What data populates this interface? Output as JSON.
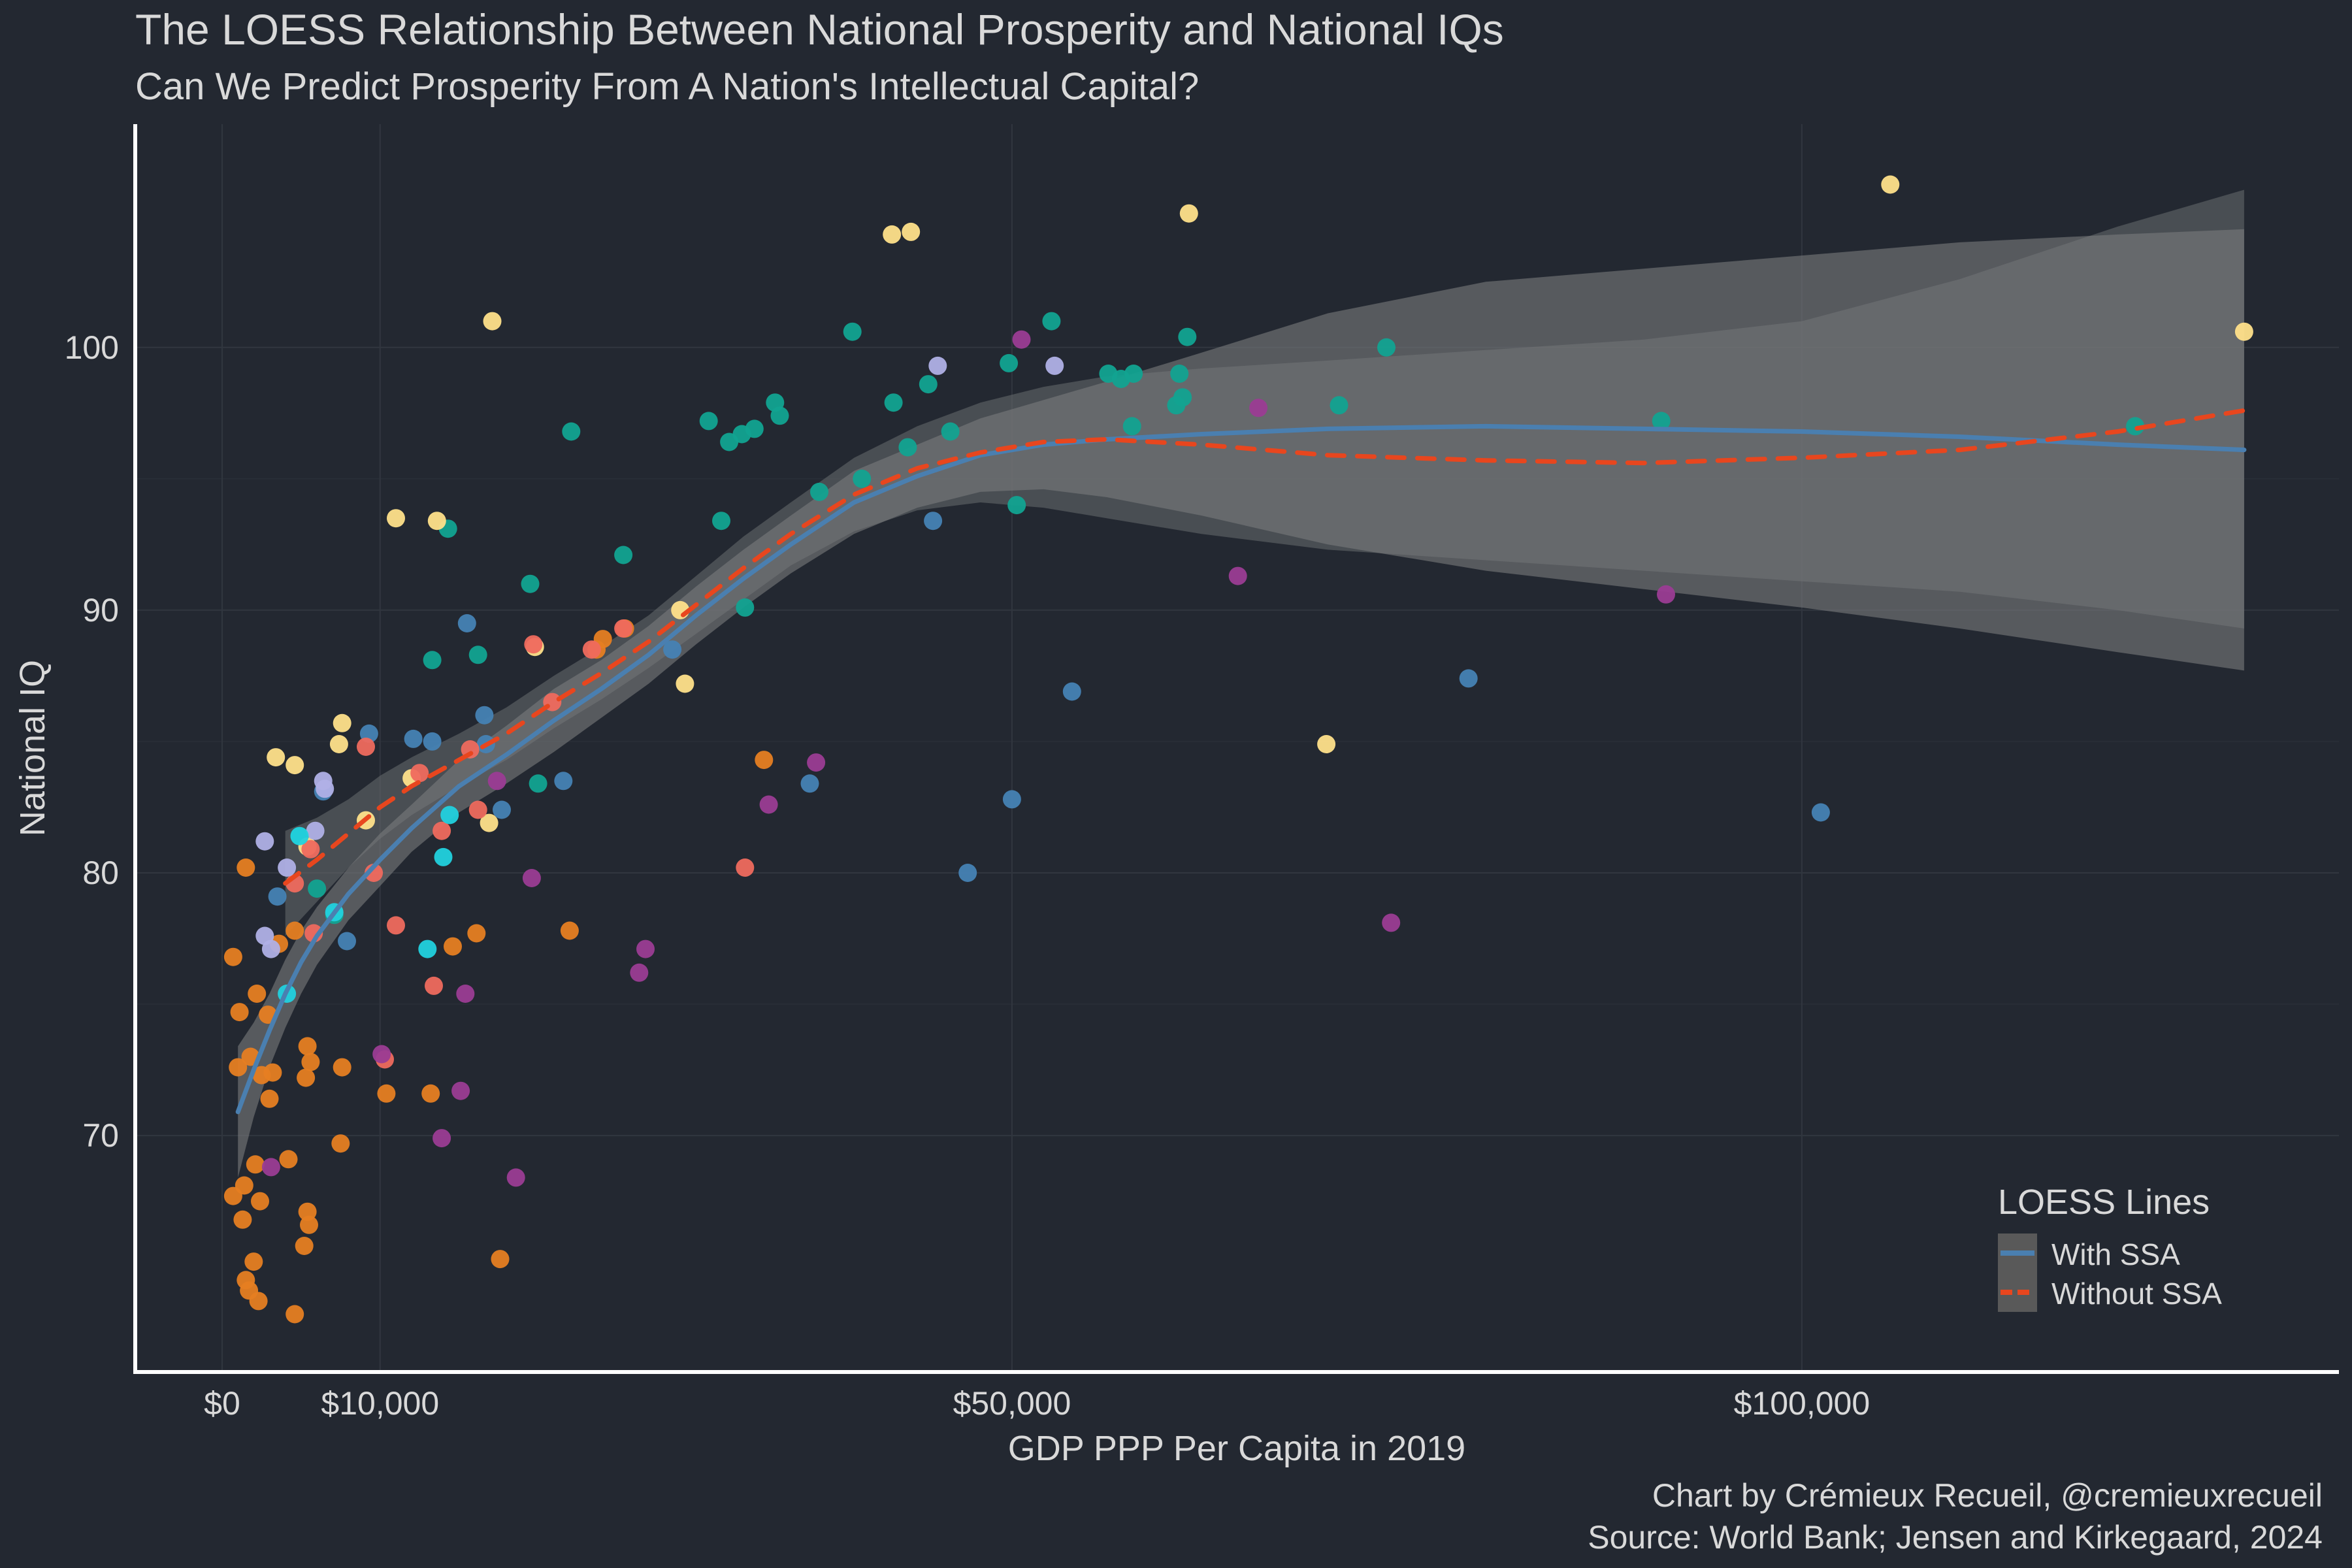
{
  "chart_data": {
    "type": "scatter",
    "title": "The LOESS Relationship Between National Prosperity and National IQs",
    "subtitle": "Can We Predict Prosperity From A Nation's Intellectual Capital?",
    "xlabel": "GDP PPP Per Capita in 2019",
    "ylabel": "National IQ",
    "xlim": [
      -5500,
      134000
    ],
    "ylim": [
      61,
      108.5
    ],
    "x_ticks": [
      {
        "value": 0,
        "label": "$0"
      },
      {
        "value": 10000,
        "label": "$10,000"
      },
      {
        "value": 50000,
        "label": "$50,000"
      },
      {
        "value": 100000,
        "label": "$100,000"
      }
    ],
    "y_ticks": [
      {
        "value": 70,
        "label": "70"
      },
      {
        "value": 80,
        "label": "80"
      },
      {
        "value": 90,
        "label": "90"
      },
      {
        "value": 100,
        "label": "100"
      }
    ],
    "grid": true,
    "legend": {
      "title": "LOESS Lines",
      "position": "bottom-right",
      "entries": [
        {
          "name": "With SSA",
          "color": "#4a7fb0",
          "style": "solid"
        },
        {
          "name": "Without SSA",
          "color": "#e8461e",
          "style": "dashed"
        }
      ]
    },
    "caption_lines": [
      "Chart by Crémieux Recueil, @cremieuxrecueil",
      "Source: World Bank; Jensen and Kirkegaard, 2024"
    ],
    "colors": {
      "orange": "#e67e22",
      "teal": "#12a391",
      "yellow": "#ffe08a",
      "blue": "#4682b4",
      "red": "#ef6a5e",
      "purple": "#9b3c93",
      "lavender": "#b0b0e6",
      "cyan": "#22d1de"
    },
    "points": [
      {
        "x": 700,
        "y": 76.8,
        "c": "orange"
      },
      {
        "x": 1100,
        "y": 74.7,
        "c": "orange"
      },
      {
        "x": 1500,
        "y": 80.2,
        "c": "orange"
      },
      {
        "x": 2200,
        "y": 75.4,
        "c": "orange"
      },
      {
        "x": 2900,
        "y": 74.6,
        "c": "orange"
      },
      {
        "x": 3200,
        "y": 72.4,
        "c": "orange"
      },
      {
        "x": 1000,
        "y": 72.6,
        "c": "orange"
      },
      {
        "x": 1800,
        "y": 73.0,
        "c": "orange"
      },
      {
        "x": 2500,
        "y": 72.3,
        "c": "orange"
      },
      {
        "x": 3000,
        "y": 71.4,
        "c": "orange"
      },
      {
        "x": 700,
        "y": 67.7,
        "c": "orange"
      },
      {
        "x": 1400,
        "y": 68.1,
        "c": "orange"
      },
      {
        "x": 2100,
        "y": 68.9,
        "c": "orange"
      },
      {
        "x": 2400,
        "y": 67.5,
        "c": "orange"
      },
      {
        "x": 1300,
        "y": 66.8,
        "c": "orange"
      },
      {
        "x": 1500,
        "y": 64.5,
        "c": "orange"
      },
      {
        "x": 1700,
        "y": 64.1,
        "c": "orange"
      },
      {
        "x": 2000,
        "y": 65.2,
        "c": "orange"
      },
      {
        "x": 2300,
        "y": 63.7,
        "c": "orange"
      },
      {
        "x": 4600,
        "y": 63.2,
        "c": "orange"
      },
      {
        "x": 4200,
        "y": 69.1,
        "c": "orange"
      },
      {
        "x": 5400,
        "y": 67.1,
        "c": "orange"
      },
      {
        "x": 5200,
        "y": 65.8,
        "c": "orange"
      },
      {
        "x": 5500,
        "y": 66.6,
        "c": "orange"
      },
      {
        "x": 5400,
        "y": 73.4,
        "c": "orange"
      },
      {
        "x": 5300,
        "y": 72.2,
        "c": "orange"
      },
      {
        "x": 5600,
        "y": 72.8,
        "c": "orange"
      },
      {
        "x": 7600,
        "y": 72.6,
        "c": "orange"
      },
      {
        "x": 7500,
        "y": 69.7,
        "c": "orange"
      },
      {
        "x": 10400,
        "y": 71.6,
        "c": "orange"
      },
      {
        "x": 13200,
        "y": 71.6,
        "c": "orange"
      },
      {
        "x": 14600,
        "y": 77.2,
        "c": "orange"
      },
      {
        "x": 16100,
        "y": 77.7,
        "c": "orange"
      },
      {
        "x": 17600,
        "y": 65.3,
        "c": "orange"
      },
      {
        "x": 3600,
        "y": 77.3,
        "c": "orange"
      },
      {
        "x": 4600,
        "y": 77.8,
        "c": "orange"
      },
      {
        "x": 22000,
        "y": 77.8,
        "c": "orange"
      },
      {
        "x": 23700,
        "y": 88.5,
        "c": "orange"
      },
      {
        "x": 24100,
        "y": 88.9,
        "c": "orange"
      },
      {
        "x": 25500,
        "y": 89.3,
        "c": "orange"
      },
      {
        "x": 34300,
        "y": 84.3,
        "c": "orange"
      },
      {
        "x": 4900,
        "y": 81.4,
        "c": "teal"
      },
      {
        "x": 6000,
        "y": 79.4,
        "c": "teal"
      },
      {
        "x": 7100,
        "y": 78.4,
        "c": "teal"
      },
      {
        "x": 13300,
        "y": 88.1,
        "c": "teal"
      },
      {
        "x": 14300,
        "y": 93.1,
        "c": "teal"
      },
      {
        "x": 16200,
        "y": 88.3,
        "c": "teal"
      },
      {
        "x": 19500,
        "y": 91.0,
        "c": "teal"
      },
      {
        "x": 20000,
        "y": 83.4,
        "c": "teal"
      },
      {
        "x": 22100,
        "y": 96.8,
        "c": "teal"
      },
      {
        "x": 25400,
        "y": 92.1,
        "c": "teal"
      },
      {
        "x": 30800,
        "y": 97.2,
        "c": "teal"
      },
      {
        "x": 31600,
        "y": 93.4,
        "c": "teal"
      },
      {
        "x": 32100,
        "y": 96.4,
        "c": "teal"
      },
      {
        "x": 32900,
        "y": 96.7,
        "c": "teal"
      },
      {
        "x": 33100,
        "y": 90.1,
        "c": "teal"
      },
      {
        "x": 33700,
        "y": 96.9,
        "c": "teal"
      },
      {
        "x": 35000,
        "y": 97.9,
        "c": "teal"
      },
      {
        "x": 35300,
        "y": 97.4,
        "c": "teal"
      },
      {
        "x": 37800,
        "y": 94.5,
        "c": "teal"
      },
      {
        "x": 39900,
        "y": 100.6,
        "c": "teal"
      },
      {
        "x": 40500,
        "y": 95.0,
        "c": "teal"
      },
      {
        "x": 42500,
        "y": 97.9,
        "c": "teal"
      },
      {
        "x": 43400,
        "y": 96.2,
        "c": "teal"
      },
      {
        "x": 44700,
        "y": 98.6,
        "c": "teal"
      },
      {
        "x": 46100,
        "y": 96.8,
        "c": "teal"
      },
      {
        "x": 49800,
        "y": 99.4,
        "c": "teal"
      },
      {
        "x": 50300,
        "y": 94.0,
        "c": "teal"
      },
      {
        "x": 52500,
        "y": 101.0,
        "c": "teal"
      },
      {
        "x": 56100,
        "y": 99.0,
        "c": "teal"
      },
      {
        "x": 56900,
        "y": 98.8,
        "c": "teal"
      },
      {
        "x": 57700,
        "y": 99.0,
        "c": "teal"
      },
      {
        "x": 57600,
        "y": 97.0,
        "c": "teal"
      },
      {
        "x": 60600,
        "y": 99.0,
        "c": "teal"
      },
      {
        "x": 60400,
        "y": 97.8,
        "c": "teal"
      },
      {
        "x": 60800,
        "y": 98.1,
        "c": "teal"
      },
      {
        "x": 61100,
        "y": 100.4,
        "c": "teal"
      },
      {
        "x": 70700,
        "y": 97.8,
        "c": "teal"
      },
      {
        "x": 73700,
        "y": 100.0,
        "c": "teal"
      },
      {
        "x": 91100,
        "y": 97.2,
        "c": "teal"
      },
      {
        "x": 121100,
        "y": 97.0,
        "c": "teal"
      },
      {
        "x": 3400,
        "y": 84.4,
        "c": "yellow"
      },
      {
        "x": 4600,
        "y": 84.1,
        "c": "yellow"
      },
      {
        "x": 7600,
        "y": 85.7,
        "c": "yellow"
      },
      {
        "x": 7400,
        "y": 84.9,
        "c": "yellow"
      },
      {
        "x": 11000,
        "y": 93.5,
        "c": "yellow"
      },
      {
        "x": 13600,
        "y": 93.4,
        "c": "yellow"
      },
      {
        "x": 17100,
        "y": 101.0,
        "c": "yellow"
      },
      {
        "x": 19800,
        "y": 88.6,
        "c": "yellow"
      },
      {
        "x": 29300,
        "y": 87.2,
        "c": "yellow"
      },
      {
        "x": 42400,
        "y": 104.3,
        "c": "yellow"
      },
      {
        "x": 43600,
        "y": 104.4,
        "c": "yellow"
      },
      {
        "x": 61200,
        "y": 105.1,
        "c": "yellow"
      },
      {
        "x": 69900,
        "y": 84.9,
        "c": "yellow"
      },
      {
        "x": 105600,
        "y": 106.2,
        "c": "yellow"
      },
      {
        "x": 128000,
        "y": 100.6,
        "c": "yellow"
      },
      {
        "x": 16900,
        "y": 81.9,
        "c": "yellow"
      },
      {
        "x": 9100,
        "y": 82.0,
        "c": "yellow"
      },
      {
        "x": 5400,
        "y": 81.0,
        "c": "yellow"
      },
      {
        "x": 12000,
        "y": 83.6,
        "c": "yellow"
      },
      {
        "x": 29000,
        "y": 90.0,
        "c": "yellow"
      },
      {
        "x": 3500,
        "y": 79.1,
        "c": "blue"
      },
      {
        "x": 6400,
        "y": 83.1,
        "c": "blue"
      },
      {
        "x": 9300,
        "y": 85.3,
        "c": "blue"
      },
      {
        "x": 12100,
        "y": 85.1,
        "c": "blue"
      },
      {
        "x": 13300,
        "y": 85.0,
        "c": "blue"
      },
      {
        "x": 15500,
        "y": 89.5,
        "c": "blue"
      },
      {
        "x": 16600,
        "y": 86.0,
        "c": "blue"
      },
      {
        "x": 17700,
        "y": 82.4,
        "c": "blue"
      },
      {
        "x": 21600,
        "y": 83.5,
        "c": "blue"
      },
      {
        "x": 37200,
        "y": 83.4,
        "c": "blue"
      },
      {
        "x": 47200,
        "y": 80.0,
        "c": "blue"
      },
      {
        "x": 50000,
        "y": 82.8,
        "c": "blue"
      },
      {
        "x": 53800,
        "y": 86.9,
        "c": "blue"
      },
      {
        "x": 78900,
        "y": 87.4,
        "c": "blue"
      },
      {
        "x": 101200,
        "y": 82.3,
        "c": "blue"
      },
      {
        "x": 45000,
        "y": 93.4,
        "c": "blue"
      },
      {
        "x": 28500,
        "y": 88.5,
        "c": "blue"
      },
      {
        "x": 16700,
        "y": 84.9,
        "c": "blue"
      },
      {
        "x": 7900,
        "y": 77.4,
        "c": "blue"
      },
      {
        "x": 4600,
        "y": 79.6,
        "c": "red"
      },
      {
        "x": 5800,
        "y": 77.7,
        "c": "red"
      },
      {
        "x": 5600,
        "y": 80.9,
        "c": "red"
      },
      {
        "x": 9100,
        "y": 84.8,
        "c": "red"
      },
      {
        "x": 10300,
        "y": 72.9,
        "c": "red"
      },
      {
        "x": 11000,
        "y": 78.0,
        "c": "red"
      },
      {
        "x": 13400,
        "y": 75.7,
        "c": "red"
      },
      {
        "x": 13900,
        "y": 81.6,
        "c": "red"
      },
      {
        "x": 15700,
        "y": 84.7,
        "c": "red"
      },
      {
        "x": 16200,
        "y": 82.4,
        "c": "red"
      },
      {
        "x": 19700,
        "y": 88.7,
        "c": "red"
      },
      {
        "x": 20900,
        "y": 86.5,
        "c": "red"
      },
      {
        "x": 23400,
        "y": 88.5,
        "c": "red"
      },
      {
        "x": 25400,
        "y": 89.3,
        "c": "red"
      },
      {
        "x": 33100,
        "y": 80.2,
        "c": "red"
      },
      {
        "x": 9600,
        "y": 80.0,
        "c": "red"
      },
      {
        "x": 12500,
        "y": 83.8,
        "c": "red"
      },
      {
        "x": 3100,
        "y": 68.8,
        "c": "purple"
      },
      {
        "x": 10100,
        "y": 73.1,
        "c": "purple"
      },
      {
        "x": 13900,
        "y": 69.9,
        "c": "purple"
      },
      {
        "x": 15100,
        "y": 71.7,
        "c": "purple"
      },
      {
        "x": 15400,
        "y": 75.4,
        "c": "purple"
      },
      {
        "x": 18600,
        "y": 68.4,
        "c": "purple"
      },
      {
        "x": 19600,
        "y": 79.8,
        "c": "purple"
      },
      {
        "x": 26400,
        "y": 76.2,
        "c": "purple"
      },
      {
        "x": 26800,
        "y": 77.1,
        "c": "purple"
      },
      {
        "x": 34600,
        "y": 82.6,
        "c": "purple"
      },
      {
        "x": 37600,
        "y": 84.2,
        "c": "purple"
      },
      {
        "x": 50600,
        "y": 100.3,
        "c": "purple"
      },
      {
        "x": 64300,
        "y": 91.3,
        "c": "purple"
      },
      {
        "x": 65600,
        "y": 97.7,
        "c": "purple"
      },
      {
        "x": 74000,
        "y": 78.1,
        "c": "purple"
      },
      {
        "x": 91400,
        "y": 90.6,
        "c": "purple"
      },
      {
        "x": 17400,
        "y": 83.5,
        "c": "purple"
      },
      {
        "x": 2700,
        "y": 81.2,
        "c": "lavender"
      },
      {
        "x": 2700,
        "y": 77.6,
        "c": "lavender"
      },
      {
        "x": 3100,
        "y": 77.1,
        "c": "lavender"
      },
      {
        "x": 4100,
        "y": 80.2,
        "c": "lavender"
      },
      {
        "x": 5900,
        "y": 81.6,
        "c": "lavender"
      },
      {
        "x": 6400,
        "y": 83.5,
        "c": "lavender"
      },
      {
        "x": 6500,
        "y": 83.2,
        "c": "lavender"
      },
      {
        "x": 45300,
        "y": 99.3,
        "c": "lavender"
      },
      {
        "x": 52700,
        "y": 99.3,
        "c": "lavender"
      },
      {
        "x": 4100,
        "y": 75.4,
        "c": "cyan"
      },
      {
        "x": 13000,
        "y": 77.1,
        "c": "cyan"
      },
      {
        "x": 14000,
        "y": 80.6,
        "c": "cyan"
      },
      {
        "x": 14400,
        "y": 82.2,
        "c": "cyan"
      },
      {
        "x": 7100,
        "y": 78.5,
        "c": "cyan"
      },
      {
        "x": 4900,
        "y": 81.4,
        "c": "cyan"
      }
    ],
    "series": [
      {
        "name": "With SSA",
        "color": "#4a7fb0",
        "x": [
          1000,
          2000,
          3000,
          4000,
          5000,
          6000,
          8000,
          10000,
          12000,
          15000,
          18000,
          21000,
          24000,
          27000,
          30000,
          33000,
          36000,
          40000,
          44000,
          48000,
          52000,
          56000,
          62000,
          70000,
          80000,
          90000,
          100000,
          110000,
          120000,
          128000
        ],
        "y": [
          70.9,
          72.5,
          74.0,
          75.4,
          76.6,
          77.6,
          79.2,
          80.5,
          81.7,
          83.3,
          84.5,
          85.8,
          87.0,
          88.3,
          89.8,
          91.2,
          92.5,
          94.1,
          95.1,
          95.9,
          96.3,
          96.5,
          96.7,
          96.9,
          97.0,
          96.9,
          96.8,
          96.6,
          96.3,
          96.1
        ],
        "lower": [
          68.4,
          70.7,
          72.6,
          74.1,
          75.4,
          76.5,
          78.2,
          79.5,
          80.8,
          82.3,
          83.4,
          84.6,
          85.9,
          87.2,
          88.7,
          90.1,
          91.4,
          92.9,
          93.9,
          94.5,
          94.6,
          94.3,
          93.6,
          92.5,
          91.5,
          90.8,
          90.1,
          89.3,
          88.4,
          87.7
        ],
        "upper": [
          73.4,
          74.3,
          75.4,
          76.7,
          77.8,
          78.7,
          80.2,
          81.5,
          82.6,
          84.3,
          85.6,
          87.0,
          88.1,
          89.4,
          90.9,
          92.3,
          93.6,
          95.3,
          96.3,
          97.3,
          98.0,
          98.7,
          99.8,
          101.3,
          102.5,
          103.0,
          103.5,
          104.0,
          104.3,
          104.5
        ]
      },
      {
        "name": "Without SSA",
        "color": "#e8461e",
        "x": [
          4000,
          6000,
          8000,
          10000,
          12000,
          15000,
          18000,
          21000,
          24000,
          27000,
          30000,
          33000,
          36000,
          40000,
          44000,
          48000,
          52000,
          56000,
          62000,
          70000,
          80000,
          90000,
          100000,
          110000,
          120000,
          128000
        ],
        "y": [
          79.6,
          80.5,
          81.5,
          82.5,
          83.3,
          84.3,
          85.3,
          86.5,
          87.6,
          88.8,
          90.2,
          91.6,
          92.9,
          94.4,
          95.4,
          96.0,
          96.4,
          96.5,
          96.3,
          95.9,
          95.7,
          95.6,
          95.8,
          96.1,
          96.8,
          97.6
        ],
        "lower": [
          77.6,
          78.9,
          80.2,
          81.3,
          82.2,
          83.3,
          84.3,
          85.5,
          86.6,
          87.8,
          89.1,
          90.4,
          91.7,
          93.0,
          93.8,
          94.1,
          93.9,
          93.5,
          92.9,
          92.3,
          91.9,
          91.5,
          91.1,
          90.7,
          90.0,
          89.3
        ],
        "upper": [
          81.6,
          82.1,
          82.8,
          83.7,
          84.4,
          85.3,
          86.3,
          87.5,
          88.6,
          89.8,
          91.3,
          92.8,
          94.1,
          95.8,
          97.0,
          97.9,
          98.5,
          98.9,
          99.2,
          99.5,
          99.9,
          100.3,
          101.0,
          102.6,
          104.6,
          106.0
        ]
      }
    ]
  }
}
